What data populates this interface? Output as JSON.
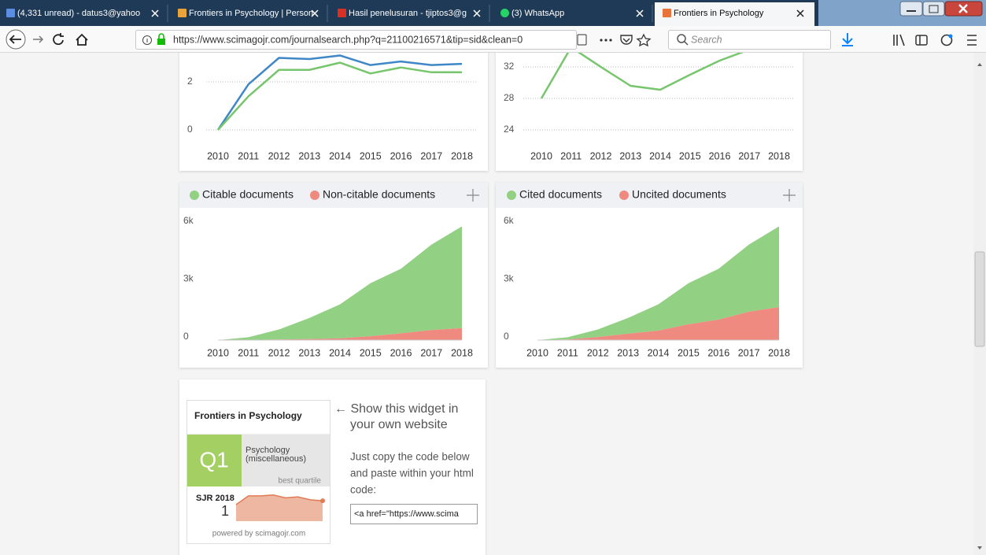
{
  "browser": {
    "tabs": [
      "(4,331 unread) - datus3@yahoo",
      "Frontiers in Psychology | Person",
      "Hasil penelusuran - tjiptos3@g",
      "(3) WhatsApp",
      "Frontiers in Psychology"
    ],
    "url": "https://www.scimagojr.com/journalsearch.php?q=21100216571&tip=sid&clean=0",
    "search_placeholder": "Search"
  },
  "charts": [
    {
      "type": "line",
      "categories": [
        "2010",
        "2011",
        "2012",
        "2013",
        "2014",
        "2015",
        "2016",
        "2017",
        "2018"
      ],
      "series": [
        {
          "color": "#3f87c6",
          "values": [
            0,
            1.9,
            3.0,
            2.95,
            3.1,
            2.7,
            2.85,
            2.7,
            2.75
          ]
        },
        {
          "color": "#77c56c",
          "values": [
            0,
            1.4,
            2.5,
            2.5,
            2.8,
            2.35,
            2.6,
            2.4,
            2.4
          ]
        }
      ],
      "ylim": [
        0,
        4
      ],
      "yticks": [
        0,
        2
      ],
      "grid": true
    },
    {
      "type": "line",
      "categories": [
        "2010",
        "2011",
        "2012",
        "2013",
        "2014",
        "2015",
        "2016",
        "2017",
        "2018"
      ],
      "series": [
        {
          "color": "#77c56c",
          "values": [
            28,
            34.5,
            32,
            29.6,
            29.1,
            31,
            32.8,
            34.2,
            35
          ]
        }
      ],
      "ylim": [
        24,
        36
      ],
      "yticks": [
        24,
        28,
        32
      ],
      "grid": true
    },
    {
      "type": "area",
      "categories": [
        "2010",
        "2011",
        "2012",
        "2013",
        "2014",
        "2015",
        "2016",
        "2017",
        "2018"
      ],
      "series": [
        {
          "name": "Non-citable documents",
          "color": "#ef8a80",
          "values": [
            0,
            10,
            30,
            50,
            90,
            200,
            350,
            520,
            620
          ]
        },
        {
          "name": "Citable documents",
          "color": "#92d083",
          "values": [
            0,
            140,
            520,
            1100,
            1760,
            2750,
            3350,
            4430,
            5280
          ]
        }
      ],
      "legend_order": [
        1,
        0
      ],
      "ylim": [
        0,
        6000
      ],
      "yticks": [
        {
          "value": 0,
          "label": "0"
        },
        {
          "value": 3000,
          "label": "3k"
        },
        {
          "value": 6000,
          "label": "6k"
        }
      ],
      "grid": false
    },
    {
      "type": "area",
      "categories": [
        "2010",
        "2011",
        "2012",
        "2013",
        "2014",
        "2015",
        "2016",
        "2017",
        "2018"
      ],
      "series": [
        {
          "name": "Uncited documents",
          "color": "#ef8a80",
          "values": [
            0,
            30,
            160,
            330,
            490,
            820,
            1060,
            1470,
            1710
          ]
        },
        {
          "name": "Cited documents",
          "color": "#92d083",
          "values": [
            0,
            120,
            390,
            820,
            1360,
            2130,
            2640,
            3480,
            4190
          ]
        }
      ],
      "legend_order": [
        1,
        0
      ],
      "ylim": [
        0,
        6000
      ],
      "yticks": [
        {
          "value": 0,
          "label": "0"
        },
        {
          "value": 3000,
          "label": "3k"
        },
        {
          "value": 6000,
          "label": "6k"
        }
      ],
      "grid": false
    }
  ],
  "widget": {
    "title": "Frontiers in Psychology",
    "quartile": "Q1",
    "category_lines": [
      "Psychology",
      "(miscellaneous)"
    ],
    "quartile_caption": "best quartile",
    "sjr_label": "SJR 2018",
    "sjr_value": "1",
    "sparkline": {
      "values": [
        0.85,
        1.3,
        1.3,
        1.35,
        1.2,
        1.25,
        1.1,
        1.05
      ],
      "ylim": [
        0,
        1.5
      ],
      "color": "#e07b53"
    },
    "powered_by": "powered by scimagojr.com",
    "show_lines": [
      "← Show this widget in",
      "your own website"
    ],
    "copy_lines": [
      "Just copy the code below",
      "and paste within your html",
      "code:"
    ],
    "code_snippet": "<a href=\"https://www.scima"
  }
}
